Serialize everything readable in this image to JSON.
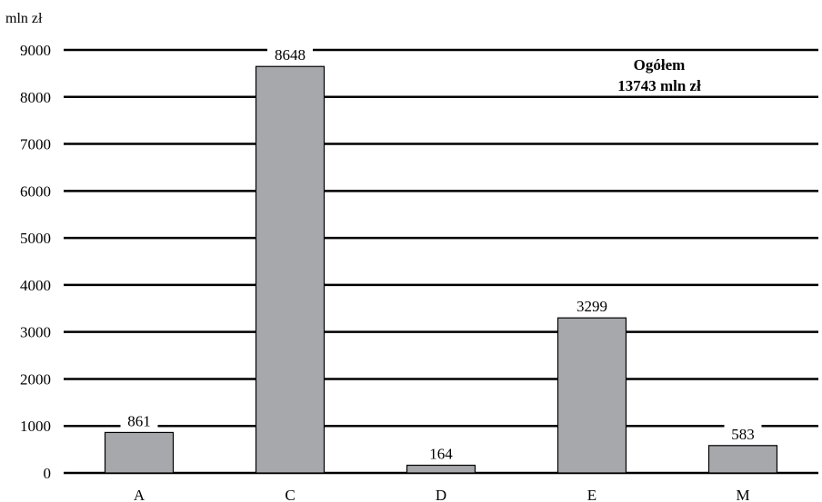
{
  "chart_data": {
    "type": "bar",
    "title": "",
    "unit_label": "mln zł",
    "xlabel": "",
    "ylabel": "",
    "categories": [
      "A",
      "C",
      "D",
      "E",
      "M"
    ],
    "values": [
      861,
      8648,
      164,
      3299,
      583
    ],
    "ylim": [
      0,
      9000
    ],
    "yticks": [
      0,
      1000,
      2000,
      3000,
      4000,
      5000,
      6000,
      7000,
      8000,
      9000
    ],
    "grid": true,
    "legend": "none",
    "annotation": {
      "line1": "Ogółem",
      "line2": "13743 mln zł",
      "placement": "top-right"
    },
    "colors": {
      "bar": "#a7a8ab",
      "bar_stroke": "#000000",
      "grid": "#000000"
    }
  }
}
